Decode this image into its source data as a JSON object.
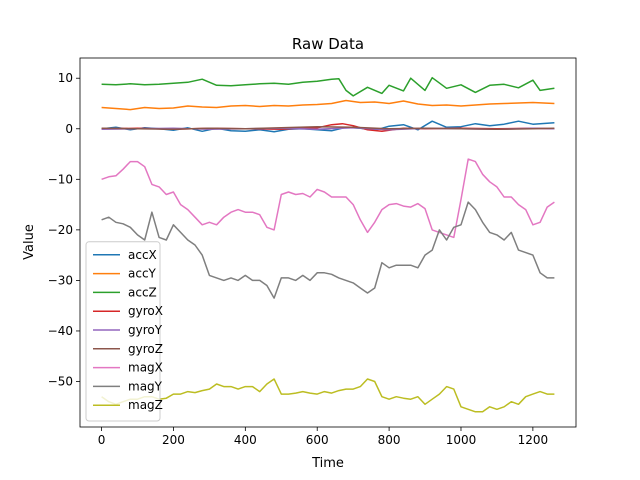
{
  "chart_data": {
    "type": "line",
    "title": "Raw Data",
    "xlabel": "Time",
    "ylabel": "Value",
    "xlim": [
      -60,
      1320
    ],
    "ylim": [
      -59,
      14
    ],
    "xticks": [
      0,
      200,
      400,
      600,
      800,
      1000,
      1200
    ],
    "yticks": [
      10,
      0,
      -10,
      -20,
      -30,
      -40,
      -50
    ],
    "legend_position": "lower-left",
    "series": [
      {
        "name": "accX",
        "color": "#1f77b4",
        "x": [
          0,
          40,
          80,
          120,
          160,
          200,
          240,
          280,
          320,
          360,
          400,
          440,
          480,
          520,
          560,
          600,
          640,
          680,
          720,
          760,
          800,
          840,
          880,
          920,
          960,
          1000,
          1040,
          1080,
          1120,
          1160,
          1200,
          1260
        ],
        "y": [
          0,
          0.3,
          -0.2,
          0.2,
          0,
          -0.3,
          0.2,
          -0.5,
          0.1,
          -0.4,
          -0.5,
          -0.2,
          -0.6,
          -0.1,
          0,
          -0.2,
          -0.4,
          0.3,
          0.1,
          -0.3,
          0.5,
          0.8,
          -0.2,
          1.5,
          0.3,
          0.4,
          1.0,
          0.6,
          0.9,
          1.5,
          0.9,
          1.2
        ]
      },
      {
        "name": "accY",
        "color": "#ff7f0e",
        "x": [
          0,
          40,
          80,
          120,
          160,
          200,
          240,
          280,
          320,
          360,
          400,
          440,
          480,
          520,
          560,
          600,
          640,
          680,
          720,
          760,
          800,
          840,
          880,
          920,
          960,
          1000,
          1040,
          1080,
          1120,
          1160,
          1200,
          1260
        ],
        "y": [
          4.2,
          4.0,
          3.8,
          4.2,
          4.0,
          4.1,
          4.5,
          4.3,
          4.2,
          4.5,
          4.6,
          4.4,
          4.6,
          4.5,
          4.7,
          4.8,
          5.0,
          5.6,
          5.2,
          5.3,
          5.0,
          5.5,
          4.9,
          4.6,
          4.7,
          4.5,
          4.7,
          4.9,
          5.0,
          5.1,
          5.2,
          5.0
        ]
      },
      {
        "name": "accZ",
        "color": "#2ca02c",
        "x": [
          0,
          40,
          80,
          120,
          160,
          200,
          240,
          280,
          320,
          360,
          400,
          440,
          480,
          520,
          560,
          600,
          640,
          660,
          680,
          700,
          740,
          780,
          800,
          840,
          860,
          900,
          920,
          960,
          1000,
          1040,
          1080,
          1120,
          1160,
          1200,
          1220,
          1260
        ],
        "y": [
          8.8,
          8.7,
          8.9,
          8.7,
          8.8,
          9.0,
          9.2,
          9.8,
          8.6,
          8.5,
          8.7,
          8.9,
          9.0,
          8.8,
          9.2,
          9.4,
          9.8,
          9.9,
          7.6,
          6.5,
          8.2,
          7.0,
          8.6,
          7.5,
          10.0,
          7.6,
          10.1,
          8.0,
          8.7,
          7.2,
          8.6,
          8.8,
          8.1,
          9.6,
          7.6,
          8.0
        ]
      },
      {
        "name": "gyroX",
        "color": "#d62728",
        "x": [
          0,
          100,
          200,
          300,
          400,
          500,
          600,
          640,
          670,
          700,
          740,
          780,
          800,
          840,
          900,
          1000,
          1100,
          1200,
          1260
        ],
        "y": [
          0,
          0.1,
          -0.1,
          0.1,
          0,
          -0.1,
          0.2,
          0.8,
          1.0,
          0.6,
          -0.2,
          -0.5,
          -0.3,
          0.1,
          0,
          0.1,
          0,
          0.1,
          0
        ]
      },
      {
        "name": "gyroY",
        "color": "#9467bd",
        "x": [
          0,
          100,
          200,
          300,
          400,
          500,
          600,
          700,
          800,
          900,
          1000,
          1100,
          1200,
          1260
        ],
        "y": [
          -0.1,
          0,
          0.1,
          -0.1,
          0,
          0.1,
          -0.1,
          0.2,
          -0.2,
          0.1,
          0,
          -0.1,
          0.1,
          0
        ]
      },
      {
        "name": "gyroZ",
        "color": "#8c564b",
        "x": [
          0,
          100,
          200,
          300,
          400,
          500,
          600,
          700,
          800,
          900,
          1000,
          1100,
          1200,
          1260
        ],
        "y": [
          0.1,
          0,
          -0.1,
          0.1,
          0,
          0.2,
          0.4,
          0.3,
          0,
          0.1,
          0,
          -0.1,
          0,
          0.1
        ]
      },
      {
        "name": "magX",
        "color": "#e377c2",
        "x": [
          0,
          20,
          40,
          60,
          80,
          100,
          120,
          140,
          160,
          180,
          200,
          220,
          240,
          260,
          280,
          300,
          320,
          340,
          360,
          380,
          400,
          420,
          440,
          460,
          480,
          500,
          520,
          540,
          560,
          580,
          600,
          620,
          640,
          660,
          680,
          700,
          720,
          740,
          760,
          780,
          800,
          820,
          840,
          860,
          880,
          900,
          920,
          940,
          960,
          980,
          1000,
          1020,
          1040,
          1060,
          1080,
          1100,
          1120,
          1140,
          1160,
          1180,
          1200,
          1220,
          1240,
          1260
        ],
        "y": [
          -10,
          -9.5,
          -9.3,
          -8,
          -6.5,
          -6.5,
          -7.5,
          -11,
          -11.5,
          -13,
          -12.5,
          -15,
          -16,
          -17.5,
          -19,
          -18.5,
          -19,
          -17.5,
          -16.5,
          -16,
          -16.5,
          -16.5,
          -17,
          -19.5,
          -20,
          -13,
          -12.5,
          -13,
          -12.8,
          -13.5,
          -12,
          -12.5,
          -13.5,
          -13.5,
          -13.5,
          -15,
          -18,
          -20.5,
          -18.5,
          -16,
          -15,
          -14.8,
          -15.3,
          -15.5,
          -14.8,
          -15.8,
          -20,
          -20.5,
          -21,
          -21.5,
          -14,
          -6,
          -6.5,
          -9,
          -10.5,
          -11.5,
          -13.5,
          -13.5,
          -15,
          -16,
          -19,
          -18.5,
          -15.5,
          -14.5
        ]
      },
      {
        "name": "magY",
        "color": "#7f7f7f",
        "x": [
          0,
          20,
          40,
          60,
          80,
          100,
          120,
          140,
          160,
          180,
          200,
          220,
          240,
          260,
          280,
          300,
          320,
          340,
          360,
          380,
          400,
          420,
          440,
          460,
          480,
          500,
          520,
          540,
          560,
          580,
          600,
          620,
          640,
          660,
          680,
          700,
          720,
          740,
          760,
          780,
          800,
          820,
          840,
          860,
          880,
          900,
          920,
          940,
          960,
          980,
          1000,
          1020,
          1040,
          1060,
          1080,
          1100,
          1120,
          1140,
          1160,
          1180,
          1200,
          1220,
          1240,
          1260
        ],
        "y": [
          -18,
          -17.5,
          -18.5,
          -18.8,
          -19.5,
          -21,
          -22,
          -16.5,
          -21.5,
          -22,
          -19,
          -20.5,
          -22,
          -23,
          -25,
          -29,
          -29.5,
          -30,
          -29.5,
          -30,
          -29,
          -30,
          -30,
          -31,
          -33.5,
          -29.5,
          -29.5,
          -30,
          -29,
          -30,
          -28.5,
          -28.5,
          -28.8,
          -29.5,
          -30,
          -30.5,
          -31.5,
          -32.5,
          -31.5,
          -26.5,
          -27.5,
          -27,
          -27,
          -27,
          -27.5,
          -25,
          -24,
          -20,
          -22,
          -19.5,
          -19,
          -14.5,
          -16,
          -18.5,
          -20.5,
          -21,
          -22,
          -20.5,
          -24,
          -24.5,
          -25,
          -28.5,
          -29.5,
          -29.5
        ]
      },
      {
        "name": "magZ",
        "color": "#bcbd22",
        "x": [
          0,
          20,
          40,
          60,
          80,
          100,
          120,
          140,
          160,
          180,
          200,
          220,
          240,
          260,
          280,
          300,
          320,
          340,
          360,
          380,
          400,
          420,
          440,
          460,
          480,
          500,
          520,
          540,
          560,
          580,
          600,
          620,
          640,
          660,
          680,
          700,
          720,
          740,
          760,
          780,
          800,
          820,
          840,
          860,
          880,
          900,
          920,
          940,
          960,
          980,
          1000,
          1020,
          1040,
          1060,
          1080,
          1100,
          1120,
          1140,
          1160,
          1180,
          1200,
          1220,
          1240,
          1260
        ],
        "y": [
          -53,
          -54,
          -54.5,
          -54,
          -53.5,
          -53.5,
          -53,
          -53,
          -53.5,
          -53.3,
          -52.5,
          -52.5,
          -52,
          -52.2,
          -51.8,
          -51.5,
          -50.5,
          -51,
          -51,
          -51.5,
          -51,
          -51,
          -52,
          -50.5,
          -49.5,
          -52.5,
          -52.5,
          -52.3,
          -52,
          -52.3,
          -52.5,
          -52,
          -52.3,
          -51.8,
          -51.5,
          -51.5,
          -51,
          -49.5,
          -50,
          -53,
          -53.5,
          -53,
          -53.3,
          -53.5,
          -53,
          -54.5,
          -53.5,
          -52.5,
          -51,
          -51.5,
          -55,
          -55.5,
          -56,
          -56,
          -55,
          -55.5,
          -55,
          -54,
          -54.5,
          -53,
          -52.5,
          -52,
          -52.5,
          -52.5
        ]
      }
    ]
  }
}
